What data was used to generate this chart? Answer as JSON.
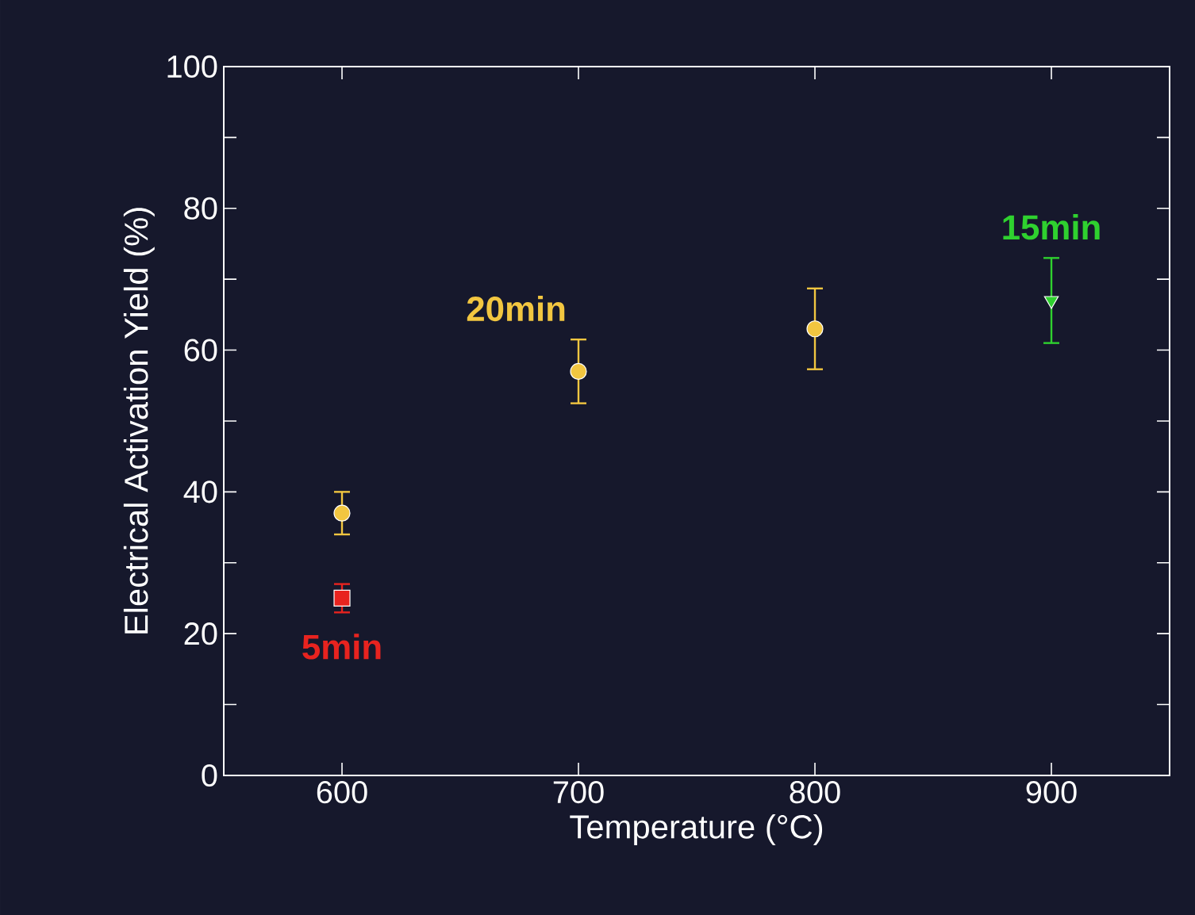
{
  "chart_data": {
    "type": "scatter",
    "xlabel": "Temperature (°C)",
    "ylabel": "Electrical Activation Yield (%)",
    "xlim": [
      550,
      950
    ],
    "ylim": [
      0,
      100
    ],
    "xticks": [
      600,
      700,
      800,
      900
    ],
    "yticks": [
      0,
      20,
      40,
      60,
      80,
      100
    ],
    "series": [
      {
        "name": "20min",
        "color": "#f2c640",
        "marker": "circle",
        "x": [
          600,
          700,
          800
        ],
        "values": [
          37,
          57,
          63
        ],
        "errors": [
          3,
          4.5,
          5.7
        ]
      },
      {
        "name": "5min",
        "color": "#e8231f",
        "marker": "square",
        "x": [
          600
        ],
        "values": [
          25
        ],
        "errors": [
          2
        ]
      },
      {
        "name": "15min",
        "color": "#2fd12f",
        "marker": "triangle",
        "x": [
          900
        ],
        "values": [
          67
        ],
        "errors": [
          6
        ]
      }
    ]
  }
}
